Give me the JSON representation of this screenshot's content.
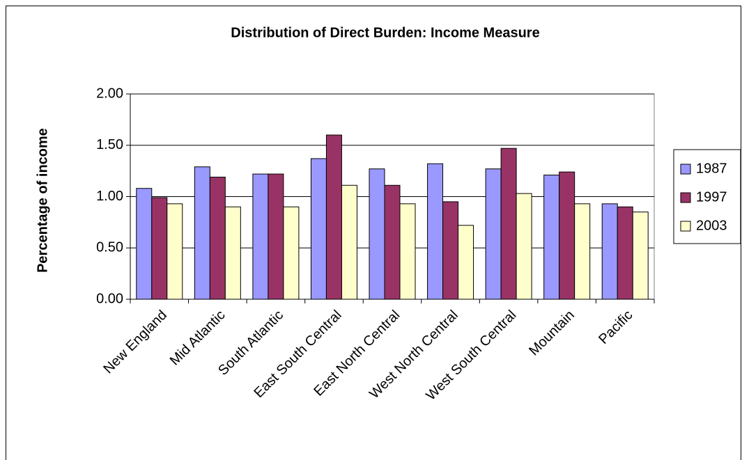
{
  "chart_data": {
    "type": "bar",
    "title": "Distribution of Direct Burden: Income Measure",
    "y_label": "Percentage of income",
    "categories": [
      "New England",
      "Mid Atlantic",
      "South Atlantic",
      "East South Central",
      "East North Central",
      "West North Central",
      "West South Central",
      "Mountain",
      "Pacific"
    ],
    "series": [
      {
        "name": "1987",
        "color": "#9999ff",
        "values": [
          1.08,
          1.29,
          1.22,
          1.37,
          1.27,
          1.32,
          1.27,
          1.21,
          0.93
        ]
      },
      {
        "name": "1997",
        "color": "#993366",
        "values": [
          0.99,
          1.19,
          1.22,
          1.6,
          1.11,
          0.95,
          1.47,
          1.24,
          0.9
        ]
      },
      {
        "name": "2003",
        "color": "#ffffcc",
        "values": [
          0.93,
          0.9,
          0.9,
          1.11,
          0.93,
          0.72,
          1.03,
          0.93,
          0.85
        ]
      }
    ],
    "ylim": [
      0,
      2
    ],
    "yticks": [
      {
        "value": 0,
        "label": "0.00"
      },
      {
        "value": 0.5,
        "label": "0.50"
      },
      {
        "value": 1,
        "label": "1.00"
      },
      {
        "value": 1.5,
        "label": "1.50"
      },
      {
        "value": 2,
        "label": "2.00"
      }
    ],
    "grid": true,
    "legend_position": "right"
  }
}
